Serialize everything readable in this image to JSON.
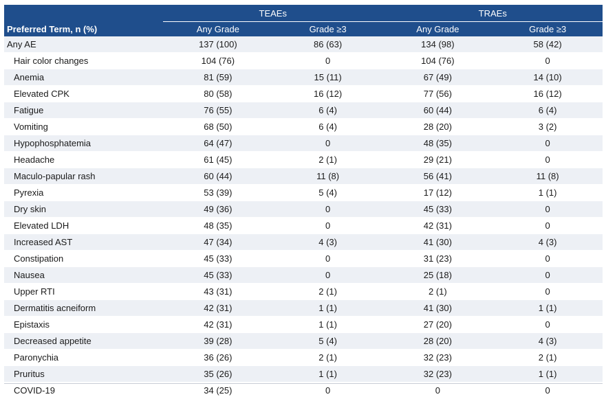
{
  "header": {
    "group_teae": "TEAEs",
    "group_trae": "TRAEs",
    "term_label": "Preferred Term, n (%)",
    "any_grade": "Any Grade",
    "grade3": "Grade ≥3"
  },
  "rows": [
    {
      "term": "Any AE",
      "teae_any": "137 (100)",
      "teae_g3": "86 (63)",
      "trae_any": "134 (98)",
      "trae_g3": "58 (42)"
    },
    {
      "term": "Hair color changes",
      "teae_any": "104 (76)",
      "teae_g3": "0",
      "trae_any": "104 (76)",
      "trae_g3": "0"
    },
    {
      "term": "Anemia",
      "teae_any": "81 (59)",
      "teae_g3": "15 (11)",
      "trae_any": "67 (49)",
      "trae_g3": "14 (10)"
    },
    {
      "term": "Elevated CPK",
      "teae_any": "80 (58)",
      "teae_g3": "16 (12)",
      "trae_any": "77 (56)",
      "trae_g3": "16 (12)"
    },
    {
      "term": "Fatigue",
      "teae_any": "76 (55)",
      "teae_g3": "6 (4)",
      "trae_any": "60 (44)",
      "trae_g3": "6 (4)"
    },
    {
      "term": "Vomiting",
      "teae_any": "68 (50)",
      "teae_g3": "6 (4)",
      "trae_any": "28 (20)",
      "trae_g3": "3 (2)"
    },
    {
      "term": "Hypophosphatemia",
      "teae_any": "64 (47)",
      "teae_g3": "0",
      "trae_any": "48 (35)",
      "trae_g3": "0"
    },
    {
      "term": "Headache",
      "teae_any": "61 (45)",
      "teae_g3": "2 (1)",
      "trae_any": "29 (21)",
      "trae_g3": "0"
    },
    {
      "term": "Maculo-papular rash",
      "teae_any": "60 (44)",
      "teae_g3": "11 (8)",
      "trae_any": "56 (41)",
      "trae_g3": "11 (8)"
    },
    {
      "term": "Pyrexia",
      "teae_any": "53 (39)",
      "teae_g3": "5 (4)",
      "trae_any": "17 (12)",
      "trae_g3": "1 (1)"
    },
    {
      "term": "Dry skin",
      "teae_any": "49 (36)",
      "teae_g3": "0",
      "trae_any": "45 (33)",
      "trae_g3": "0"
    },
    {
      "term": "Elevated LDH",
      "teae_any": "48 (35)",
      "teae_g3": "0",
      "trae_any": "42 (31)",
      "trae_g3": "0"
    },
    {
      "term": "Increased AST",
      "teae_any": "47 (34)",
      "teae_g3": "4 (3)",
      "trae_any": "41 (30)",
      "trae_g3": "4 (3)"
    },
    {
      "term": "Constipation",
      "teae_any": "45 (33)",
      "teae_g3": "0",
      "trae_any": "31 (23)",
      "trae_g3": "0"
    },
    {
      "term": "Nausea",
      "teae_any": "45 (33)",
      "teae_g3": "0",
      "trae_any": "25 (18)",
      "trae_g3": "0"
    },
    {
      "term": "Upper RTI",
      "teae_any": "43 (31)",
      "teae_g3": "2 (1)",
      "trae_any": "2 (1)",
      "trae_g3": "0"
    },
    {
      "term": "Dermatitis acneiform",
      "teae_any": "42 (31)",
      "teae_g3": "1 (1)",
      "trae_any": "41 (30)",
      "trae_g3": "1 (1)"
    },
    {
      "term": "Epistaxis",
      "teae_any": "42 (31)",
      "teae_g3": "1 (1)",
      "trae_any": "27 (20)",
      "trae_g3": "0"
    },
    {
      "term": "Decreased appetite",
      "teae_any": "39 (28)",
      "teae_g3": "5 (4)",
      "trae_any": "28 (20)",
      "trae_g3": "4 (3)"
    },
    {
      "term": "Paronychia",
      "teae_any": "36 (26)",
      "teae_g3": "2 (1)",
      "trae_any": "32 (23)",
      "trae_g3": "2 (1)"
    },
    {
      "term": "Pruritus",
      "teae_any": "35 (26)",
      "teae_g3": "1 (1)",
      "trae_any": "32 (23)",
      "trae_g3": "1 (1)"
    },
    {
      "term": "COVID-19",
      "teae_any": "34 (25)",
      "teae_g3": "0",
      "trae_any": "0",
      "trae_g3": "0"
    }
  ],
  "colors": {
    "header_bg": "#1f4e8c",
    "band_bg": "#edf0f5"
  }
}
